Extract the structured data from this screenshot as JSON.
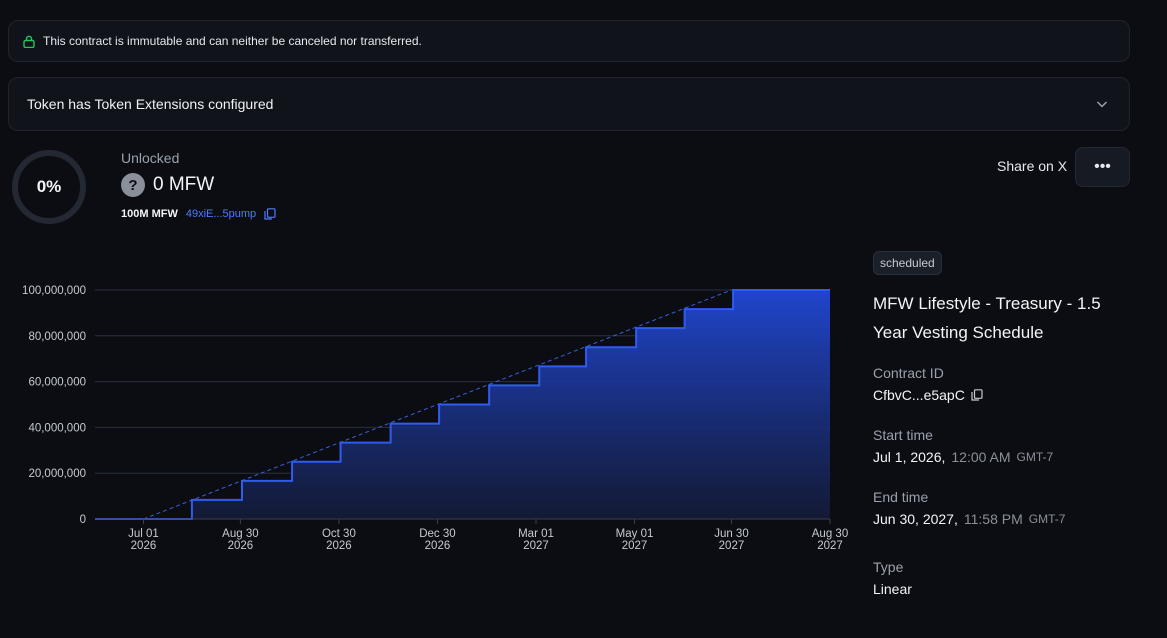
{
  "banner": {
    "text": "This contract is immutable and can neither be canceled nor transferred."
  },
  "extensions": {
    "text": "Token has Token Extensions configured"
  },
  "progress": {
    "percent_label": "0%",
    "percent": 0
  },
  "unlocked": {
    "label": "Unlocked",
    "amount": "0 MFW",
    "total": "100M MFW",
    "address": "49xiE...5pump"
  },
  "actions": {
    "share_label": "Share on X",
    "more_label": "•••"
  },
  "contract": {
    "status": "scheduled",
    "title": "MFW Lifestyle - Treasury - 1.5 Year Vesting Schedule",
    "id_label": "Contract ID",
    "id_value": "CfbvC...e5apC",
    "start_label": "Start time",
    "start_date": "Jul 1, 2026,",
    "start_time": "12:00 AM",
    "start_tz": "GMT-7",
    "end_label": "End time",
    "end_date": "Jun 30, 2027,",
    "end_time": "11:58 PM",
    "end_tz": "GMT-7",
    "type_label": "Type",
    "type_value": "Linear"
  },
  "colors": {
    "accent": "#2f5cf0",
    "link": "#4e7cff",
    "lock": "#22c55e"
  },
  "chart_data": {
    "type": "area",
    "ylim": [
      0,
      100000000
    ],
    "yticks": [
      "0",
      "20,000,000",
      "40,000,000",
      "60,000,000",
      "80,000,000",
      "100,000,000"
    ],
    "ytick_values": [
      0,
      20000000,
      40000000,
      60000000,
      80000000,
      100000000
    ],
    "xtick_labels": [
      [
        "Jul 01",
        "2026"
      ],
      [
        "Aug 30",
        "2026"
      ],
      [
        "Oct 30",
        "2026"
      ],
      [
        "Dec 30",
        "2026"
      ],
      [
        "Mar 01",
        "2027"
      ],
      [
        "May 01",
        "2027"
      ],
      [
        "Jun 30",
        "2027"
      ],
      [
        "Aug 30",
        "2027"
      ]
    ],
    "xtick_dates": [
      "2026-07-01",
      "2026-08-30",
      "2026-10-30",
      "2026-12-30",
      "2027-03-01",
      "2027-05-01",
      "2027-06-30",
      "2027-08-30"
    ],
    "xlim": [
      "2026-06-01",
      "2027-08-30"
    ],
    "step_dates": [
      "2026-06-01",
      "2026-07-31",
      "2026-08-31",
      "2026-10-01",
      "2026-10-31",
      "2026-12-01",
      "2026-12-31",
      "2027-01-31",
      "2027-03-03",
      "2027-04-01",
      "2027-05-02",
      "2027-06-01",
      "2027-07-01",
      "2027-08-30"
    ],
    "step_values": [
      0,
      8333333,
      16666667,
      25000000,
      33333333,
      41666667,
      50000000,
      58333333,
      66666667,
      75000000,
      83333333,
      91666667,
      100000000,
      100000000
    ],
    "linear_line": [
      [
        "2026-07-01",
        0
      ],
      [
        "2027-06-30",
        100000000
      ]
    ],
    "grid": true
  }
}
